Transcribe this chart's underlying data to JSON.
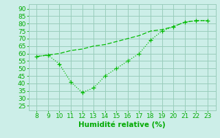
{
  "line1_x": [
    8,
    9,
    10,
    11,
    12,
    13,
    14,
    15,
    16,
    17,
    18,
    19,
    20,
    21,
    22,
    23
  ],
  "line1_y": [
    58,
    59,
    60,
    62,
    63,
    65,
    66,
    68,
    70,
    72,
    75,
    76,
    78,
    81,
    82,
    82
  ],
  "line2_x": [
    8,
    9,
    10,
    11,
    12,
    13,
    14,
    15,
    16,
    17,
    18,
    19,
    20,
    21,
    22,
    23
  ],
  "line2_y": [
    58,
    59,
    53,
    41,
    34,
    37,
    45,
    50,
    55,
    60,
    69,
    75,
    78,
    81,
    82,
    82
  ],
  "line_color": "#00bb00",
  "bg_color": "#cceee8",
  "grid_color": "#99ccbb",
  "xlabel": "Humidité relative (%)",
  "xlabel_color": "#00aa00",
  "xticks": [
    8,
    9,
    10,
    11,
    12,
    13,
    14,
    15,
    16,
    17,
    18,
    19,
    20,
    21,
    22,
    23
  ],
  "yticks": [
    25,
    30,
    35,
    40,
    45,
    50,
    55,
    60,
    65,
    70,
    75,
    80,
    85,
    90
  ],
  "ylim": [
    22,
    93
  ],
  "xlim": [
    7.3,
    23.7
  ],
  "tick_color": "#00aa00",
  "tick_fontsize": 6.5,
  "xlabel_fontsize": 7.5,
  "markersize": 2.5
}
